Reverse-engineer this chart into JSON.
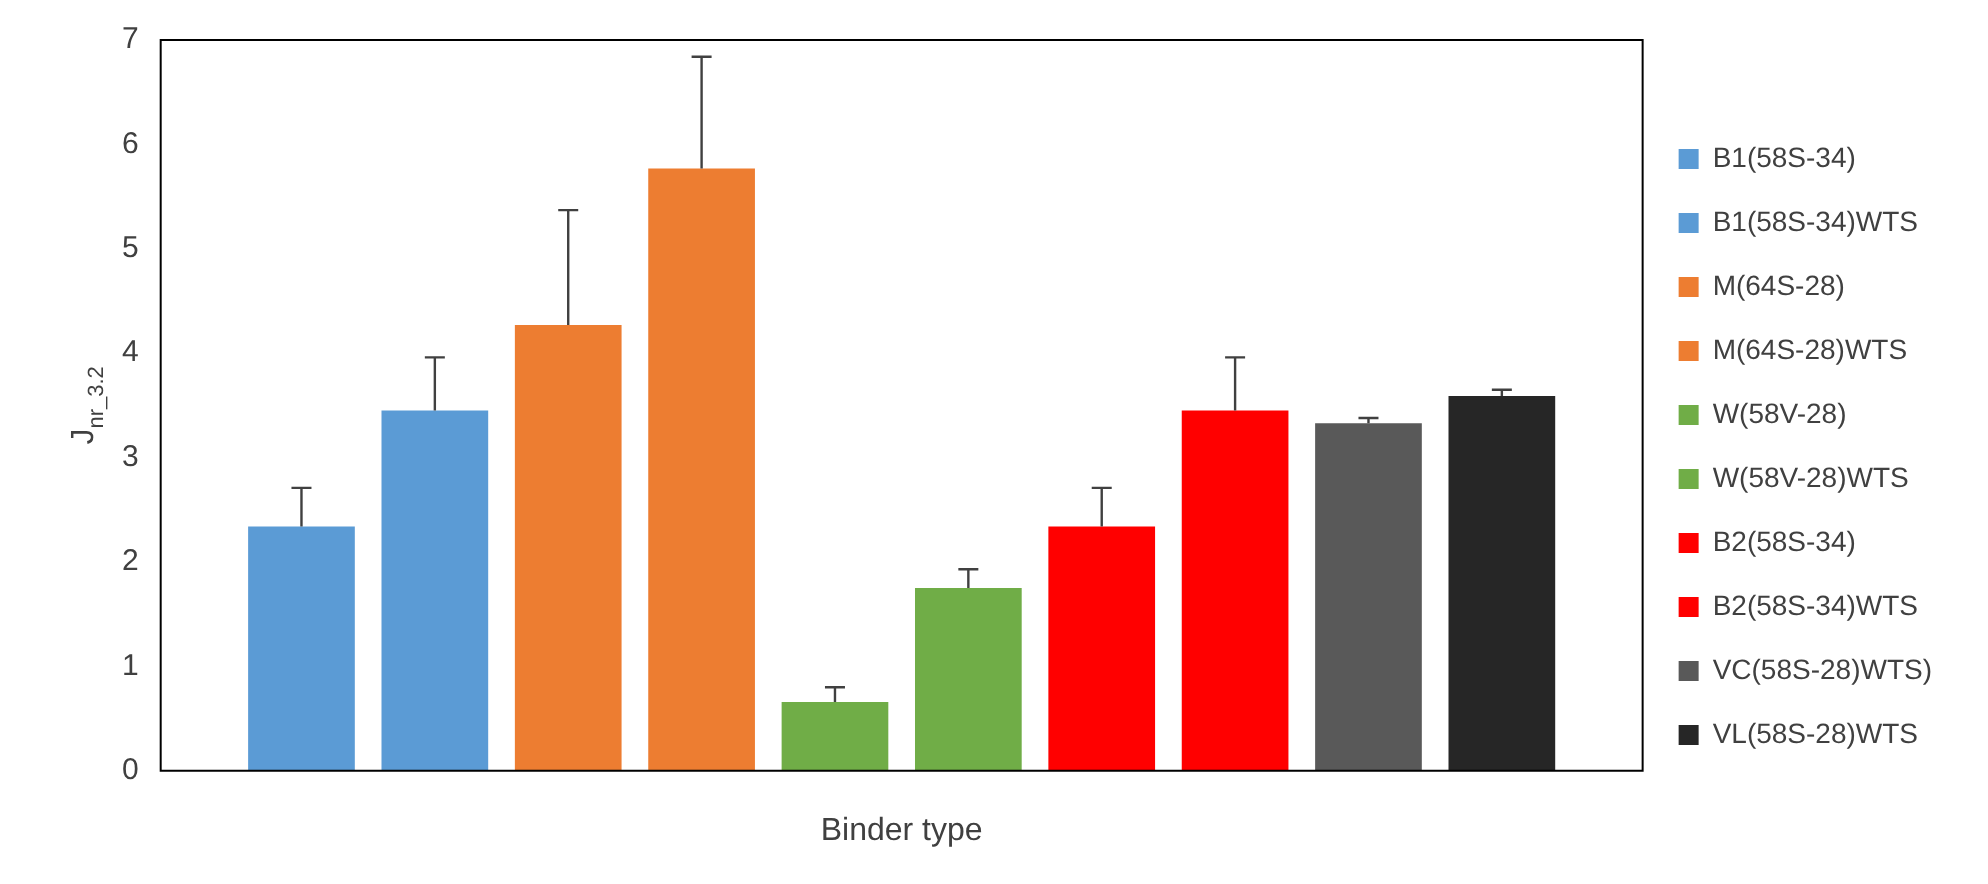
{
  "chart_data": {
    "type": "bar",
    "xlabel": "Binder type",
    "ylabel": "J$_{nr_3.2}$",
    "categories": [
      null
    ],
    "series": [
      {
        "name": "B1(58S-34)",
        "color": "#5b9bd5",
        "values": [
          2.34
        ],
        "errors": [
          [
            2.34,
            2.71
          ]
        ]
      },
      {
        "name": "B1(58S-34)WTS",
        "color": "#5b9bd5",
        "values": [
          3.45
        ],
        "errors": [
          [
            3.45,
            3.96
          ]
        ]
      },
      {
        "name": "M(64S-28)",
        "color": "#ed7d31",
        "values": [
          4.27
        ],
        "errors": [
          [
            4.27,
            5.37
          ]
        ]
      },
      {
        "name": "M(64S-28)WTS",
        "color": "#ed7d31",
        "values": [
          5.77
        ],
        "errors": [
          [
            5.77,
            6.84
          ]
        ]
      },
      {
        "name": "W(58V-28)",
        "color": "#70ad47",
        "values": [
          0.66
        ],
        "errors": [
          [
            0.66,
            0.8
          ]
        ]
      },
      {
        "name": "W(58V-28)WTS",
        "color": "#70ad47",
        "values": [
          1.75
        ],
        "errors": [
          [
            1.75,
            1.93
          ]
        ]
      },
      {
        "name": "B2(58S-34)",
        "color": "#ff0000",
        "values": [
          2.34
        ],
        "errors": [
          [
            2.34,
            2.71
          ]
        ]
      },
      {
        "name": "B2(58S-34)WTS",
        "color": "#ff0000",
        "values": [
          3.45
        ],
        "errors": [
          [
            3.45,
            3.96
          ]
        ]
      },
      {
        "name": "VC(58S-28)WTS)",
        "color": "#595959",
        "values": [
          3.33
        ],
        "errors": [
          [
            3.33,
            3.38
          ]
        ]
      },
      {
        "name": "VL(58S-28)WTS",
        "color": "#262626",
        "values": [
          3.59
        ],
        "errors": [
          [
            3.59,
            3.65
          ]
        ]
      }
    ],
    "ylim": [
      0,
      7
    ],
    "yticks": [
      0,
      1,
      2,
      3,
      4,
      5,
      6,
      7
    ],
    "grid": false,
    "legend": "right"
  }
}
